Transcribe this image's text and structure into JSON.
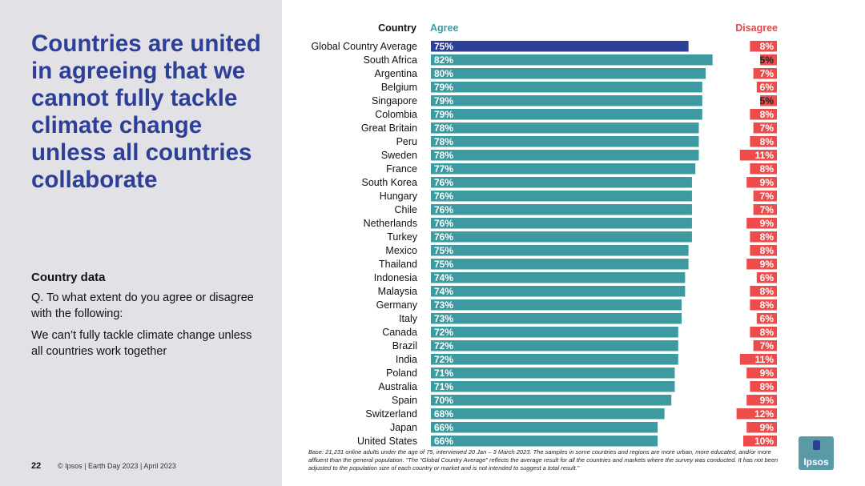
{
  "slide": {
    "headline": "Countries are united in agreeing that we cannot fully tackle climate change unless all countries collaborate",
    "section_label": "Country data",
    "question": "Q. To what extent do you agree or disagree with the following:",
    "statement": "We can’t fully tackle climate change unless all countries work together",
    "page_number": "22",
    "copyright": "© Ipsos | Earth Day 2023 | April 2023",
    "base_note": "Base: 21,231 online adults under the age of 75, interviewed 20 Jan – 3 March 2023. The samples in some countries and regions are more urban, more educated, and/or more affluent than the general population. “The “Global Country Average” reflects the average result for all the countries and markets where the survey was conducted. It has not been adjusted to the population size of each country or market and is not intended to suggest a total result.”",
    "logo_text": "Ipsos"
  },
  "colors": {
    "agree_bar": "#3c9aa0",
    "highlight_bar": "#2d3f97",
    "disagree_bar": "#ee4b4b",
    "agree_header": "#3c9aa0",
    "disagree_header": "#e24a4a",
    "panel_bg": "#e1e1e6",
    "headline": "#2d3f97"
  },
  "chart_data": {
    "type": "bar",
    "orientation": "horizontal",
    "title": "",
    "column_headers": {
      "country": "Country",
      "agree": "Agree",
      "disagree": "Disagree"
    },
    "value_suffix": "%",
    "xlim": [
      0,
      100
    ],
    "categories": [
      "Global Country Average",
      "South Africa",
      "Argentina",
      "Belgium",
      "Singapore",
      "Colombia",
      "Great Britain",
      "Peru",
      "Sweden",
      "France",
      "South Korea",
      "Hungary",
      "Chile",
      "Netherlands",
      "Turkey",
      "Mexico",
      "Thailand",
      "Indonesia",
      "Malaysia",
      "Germany",
      "Italy",
      "Canada",
      "Brazil",
      "India",
      "Poland",
      "Australia",
      "Spain",
      "Switzerland",
      "Japan",
      "United States"
    ],
    "highlight_index": 0,
    "series": [
      {
        "name": "Agree",
        "values": [
          75,
          82,
          80,
          79,
          79,
          79,
          78,
          78,
          78,
          77,
          76,
          76,
          76,
          76,
          76,
          75,
          75,
          74,
          74,
          73,
          73,
          72,
          72,
          72,
          71,
          71,
          70,
          68,
          66,
          66
        ]
      },
      {
        "name": "Disagree",
        "values": [
          8,
          5,
          7,
          6,
          5,
          8,
          7,
          8,
          11,
          8,
          9,
          7,
          7,
          9,
          8,
          8,
          9,
          6,
          8,
          8,
          6,
          8,
          7,
          11,
          9,
          8,
          9,
          12,
          9,
          10
        ]
      }
    ]
  }
}
